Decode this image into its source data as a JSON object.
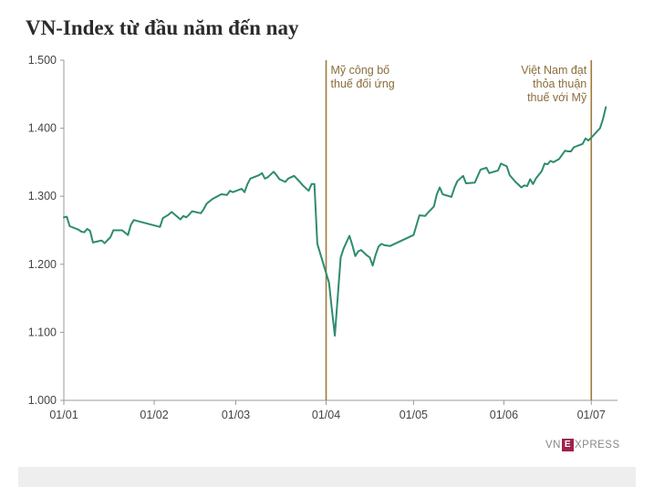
{
  "chart_data": {
    "type": "line",
    "title": "VN-Index từ đầu năm đến nay",
    "xlabel": "",
    "ylabel": "",
    "ylim": [
      1000,
      1500
    ],
    "yticks": [
      1000,
      1100,
      1200,
      1300,
      1400,
      1500
    ],
    "ytick_labels": [
      "1.000",
      "1.100",
      "1.200",
      "1.300",
      "1.400",
      "1.500"
    ],
    "xticks": [
      {
        "label": "01/01",
        "day": 0
      },
      {
        "label": "01/02",
        "day": 31
      },
      {
        "label": "01/03",
        "day": 59
      },
      {
        "label": "01/04",
        "day": 90
      },
      {
        "label": "01/05",
        "day": 120
      },
      {
        "label": "01/06",
        "day": 151
      },
      {
        "label": "01/07",
        "day": 181
      }
    ],
    "xlim": [
      0,
      190
    ],
    "grid": false,
    "line_color": "#2e8b6e",
    "annotation_color": "#a07a3a",
    "annotations": [
      {
        "day": 90,
        "lines": [
          "Mỹ công bố",
          "thuế đối ứng"
        ],
        "align": "start"
      },
      {
        "day": 181,
        "lines": [
          "Việt Nam đạt",
          "thỏa thuận",
          "thuế với Mỹ"
        ],
        "align": "end"
      }
    ],
    "series": [
      {
        "name": "",
        "points": [
          [
            0,
            1269
          ],
          [
            1,
            1270
          ],
          [
            2,
            1256
          ],
          [
            5,
            1251
          ],
          [
            6,
            1248
          ],
          [
            7,
            1247
          ],
          [
            8,
            1252
          ],
          [
            9,
            1249
          ],
          [
            10,
            1232
          ],
          [
            12,
            1234
          ],
          [
            13,
            1235
          ],
          [
            14,
            1231
          ],
          [
            16,
            1240
          ],
          [
            17,
            1250
          ],
          [
            20,
            1250
          ],
          [
            22,
            1243
          ],
          [
            23,
            1258
          ],
          [
            24,
            1265
          ],
          [
            33,
            1255
          ],
          [
            34,
            1268
          ],
          [
            36,
            1273
          ],
          [
            37,
            1277
          ],
          [
            40,
            1266
          ],
          [
            41,
            1271
          ],
          [
            42,
            1269
          ],
          [
            43,
            1273
          ],
          [
            44,
            1278
          ],
          [
            47,
            1275
          ],
          [
            48,
            1281
          ],
          [
            49,
            1289
          ],
          [
            51,
            1296
          ],
          [
            54,
            1303
          ],
          [
            56,
            1302
          ],
          [
            57,
            1308
          ],
          [
            58,
            1306
          ],
          [
            61,
            1311
          ],
          [
            62,
            1306
          ],
          [
            63,
            1318
          ],
          [
            64,
            1326
          ],
          [
            67,
            1331
          ],
          [
            68,
            1334
          ],
          [
            69,
            1326
          ],
          [
            70,
            1328
          ],
          [
            72,
            1336
          ],
          [
            73,
            1331
          ],
          [
            74,
            1325
          ],
          [
            76,
            1321
          ],
          [
            77,
            1326
          ],
          [
            79,
            1330
          ],
          [
            81,
            1321
          ],
          [
            82,
            1316
          ],
          [
            84,
            1308
          ],
          [
            85,
            1318
          ],
          [
            86,
            1318
          ],
          [
            87,
            1230
          ],
          [
            91,
            1173
          ],
          [
            92,
            1133
          ],
          [
            93,
            1095
          ],
          [
            95,
            1210
          ],
          [
            96,
            1223
          ],
          [
            98,
            1242
          ],
          [
            99,
            1228
          ],
          [
            100,
            1212
          ],
          [
            101,
            1219
          ],
          [
            102,
            1221
          ],
          [
            104,
            1213
          ],
          [
            105,
            1210
          ],
          [
            106,
            1198
          ],
          [
            107,
            1214
          ],
          [
            108,
            1226
          ],
          [
            109,
            1230
          ],
          [
            110,
            1228
          ],
          [
            112,
            1227
          ],
          [
            120,
            1243
          ],
          [
            122,
            1272
          ],
          [
            124,
            1271
          ],
          [
            125,
            1276
          ],
          [
            127,
            1285
          ],
          [
            128,
            1303
          ],
          [
            129,
            1313
          ],
          [
            130,
            1303
          ],
          [
            133,
            1299
          ],
          [
            134,
            1312
          ],
          [
            135,
            1322
          ],
          [
            137,
            1330
          ],
          [
            138,
            1319
          ],
          [
            141,
            1320
          ],
          [
            143,
            1339
          ],
          [
            145,
            1342
          ],
          [
            146,
            1334
          ],
          [
            149,
            1338
          ],
          [
            150,
            1348
          ],
          [
            152,
            1344
          ],
          [
            153,
            1331
          ],
          [
            155,
            1321
          ],
          [
            157,
            1313
          ],
          [
            158,
            1316
          ],
          [
            159,
            1315
          ],
          [
            160,
            1325
          ],
          [
            161,
            1318
          ],
          [
            162,
            1326
          ],
          [
            164,
            1337
          ],
          [
            165,
            1348
          ],
          [
            166,
            1347
          ],
          [
            167,
            1352
          ],
          [
            168,
            1350
          ],
          [
            170,
            1355
          ],
          [
            172,
            1367
          ],
          [
            173,
            1366
          ],
          [
            174,
            1366
          ],
          [
            175,
            1372
          ],
          [
            178,
            1377
          ],
          [
            179,
            1385
          ],
          [
            180,
            1382
          ],
          [
            181,
            1386
          ],
          [
            184,
            1400
          ],
          [
            185,
            1413
          ],
          [
            186,
            1431
          ]
        ]
      }
    ]
  },
  "branding": {
    "logo_prefix": "VN",
    "logo_mark": "E",
    "logo_suffix": "XPRESS"
  }
}
